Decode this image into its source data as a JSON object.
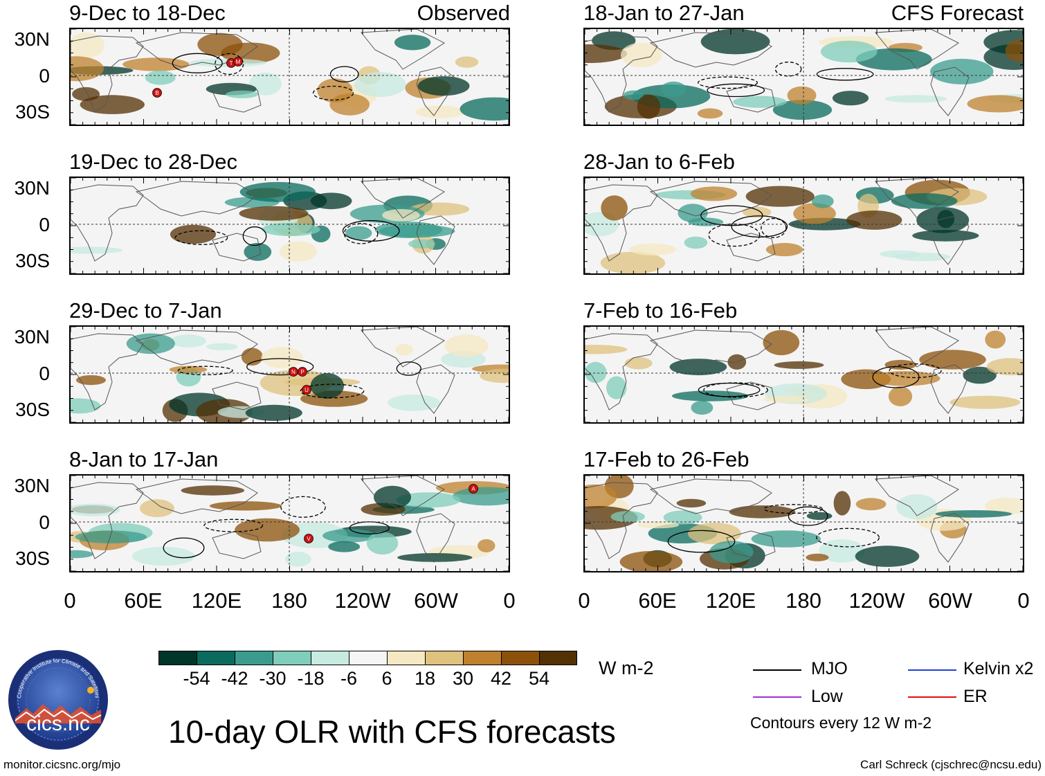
{
  "observed": {
    "label": "Observed",
    "panels": [
      {
        "title": "9-Dec to 18-Dec",
        "storms": [
          "T",
          "M",
          "B"
        ]
      },
      {
        "title": "19-Dec to 28-Dec",
        "storms": []
      },
      {
        "title": "29-Dec to 7-Jan",
        "storms": [
          "N",
          "P",
          "U"
        ]
      },
      {
        "title": "8-Jan to 17-Jan",
        "storms": [
          "A",
          "V"
        ]
      }
    ]
  },
  "forecast": {
    "label": "CFS Forecast",
    "panels": [
      {
        "title": "18-Jan to 27-Jan"
      },
      {
        "title": "28-Jan to 6-Feb"
      },
      {
        "title": "7-Feb to 16-Feb"
      },
      {
        "title": "17-Feb to 26-Feb"
      }
    ]
  },
  "lat_labels": [
    "30N",
    "0",
    "30S"
  ],
  "lon_labels": [
    "0",
    "60E",
    "120E",
    "180",
    "120W",
    "60W",
    "0"
  ],
  "colorbar": {
    "colors": [
      "#00352a",
      "#0a6b5e",
      "#3b9c8e",
      "#7fcdbb",
      "#c7eae1",
      "#f5f5f5",
      "#f6e8c3",
      "#dfc27d",
      "#bf812d",
      "#8c510a",
      "#543005"
    ],
    "labels": [
      "-54",
      "-42",
      "-30",
      "-18",
      "-6",
      "6",
      "18",
      "30",
      "42",
      "54"
    ],
    "units": "W m-2"
  },
  "title": "10-day OLR with CFS forecasts",
  "legend": {
    "items": [
      {
        "label": "MJO",
        "color": "#000000"
      },
      {
        "label": "Kelvin x2",
        "color": "#1f3fd8"
      },
      {
        "label": "Low",
        "color": "#9b30d9"
      },
      {
        "label": "ER",
        "color": "#e01010"
      }
    ],
    "note": "Contours every 12 W m-2"
  },
  "logo": {
    "text": "cics.nc",
    "ring_text": "Cooperative Institute for Climate and Satellites"
  },
  "footer": {
    "left": "monitor.cicsnc.org/mjo",
    "right": "Carl Schreck (cjschrec@ncsu.edu)"
  }
}
